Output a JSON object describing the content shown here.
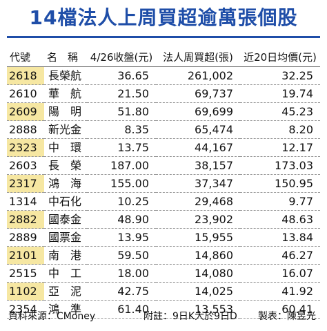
{
  "title": "14檔法人上周買超逾萬張個股",
  "headers": {
    "code": "代號",
    "name": "名　稱",
    "close": "4/26收盤(元)",
    "net_buy": "法人周買超(張)",
    "avg20": "近20日均價(元)"
  },
  "rows": [
    {
      "code": "2618",
      "name": "長榮航",
      "close": "36.65",
      "net_buy": "261,002",
      "avg20": "32.25",
      "highlight": true
    },
    {
      "code": "2610",
      "name": "華　航",
      "close": "21.50",
      "net_buy": "69,737",
      "avg20": "19.74",
      "highlight": false
    },
    {
      "code": "2609",
      "name": "陽　明",
      "close": "51.80",
      "net_buy": "69,699",
      "avg20": "45.23",
      "highlight": true
    },
    {
      "code": "2888",
      "name": "新光金",
      "close": "8.35",
      "net_buy": "65,474",
      "avg20": "8.20",
      "highlight": false
    },
    {
      "code": "2323",
      "name": "中　環",
      "close": "13.75",
      "net_buy": "44,167",
      "avg20": "12.17",
      "highlight": true
    },
    {
      "code": "2603",
      "name": "長　榮",
      "close": "187.00",
      "net_buy": "38,157",
      "avg20": "173.03",
      "highlight": false
    },
    {
      "code": "2317",
      "name": "鴻　海",
      "close": "155.00",
      "net_buy": "37,347",
      "avg20": "150.95",
      "highlight": true
    },
    {
      "code": "1314",
      "name": "中石化",
      "close": "10.25",
      "net_buy": "29,468",
      "avg20": "9.77",
      "highlight": false
    },
    {
      "code": "2882",
      "name": "國泰金",
      "close": "48.90",
      "net_buy": "23,902",
      "avg20": "48.63",
      "highlight": true
    },
    {
      "code": "2889",
      "name": "國票金",
      "close": "13.95",
      "net_buy": "15,955",
      "avg20": "13.84",
      "highlight": false
    },
    {
      "code": "2101",
      "name": "南　港",
      "close": "59.50",
      "net_buy": "14,860",
      "avg20": "46.27",
      "highlight": true
    },
    {
      "code": "2515",
      "name": "中　工",
      "close": "18.00",
      "net_buy": "14,080",
      "avg20": "16.07",
      "highlight": false
    },
    {
      "code": "1102",
      "name": "亞　泥",
      "close": "42.75",
      "net_buy": "14,025",
      "avg20": "41.92",
      "highlight": true
    },
    {
      "code": "2354",
      "name": "鴻　準",
      "close": "61.40",
      "net_buy": "13,553",
      "avg20": "60.41",
      "highlight": false
    }
  ],
  "footer": {
    "source": "資料來源：CMoney",
    "note": "附註：9日K大於9日D",
    "maker": "製表：陳昱光"
  },
  "colors": {
    "title": "#1f4ea8",
    "highlight": "#f6e7a2"
  }
}
